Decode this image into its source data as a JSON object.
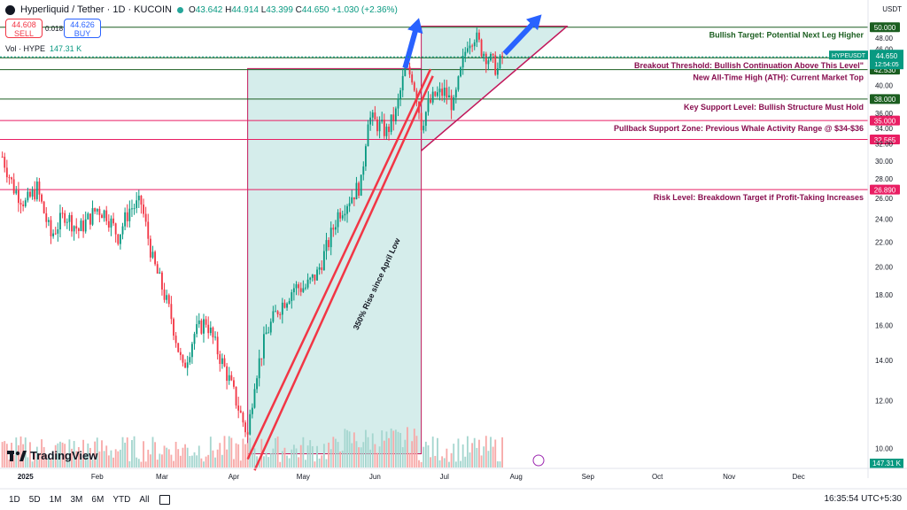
{
  "header": {
    "title": "Hyperliquid / Tether · 1D · KUCOIN",
    "o_label": "O",
    "o": "43.642",
    "h_label": "H",
    "h": "44.914",
    "l_label": "L",
    "l": "43.399",
    "c_label": "C",
    "c": "44.650",
    "change": "+1.030 (+2.36%)",
    "sell_price": "44.608",
    "sell_label": "SELL",
    "spread": "0.018",
    "buy_price": "44.626",
    "buy_label": "BUY",
    "vol_label": "Vol · HYPE",
    "vol_value": "147.31 K",
    "currency": "USDT"
  },
  "toolbar": {
    "timeframes": [
      "1D",
      "5D",
      "1M",
      "3M",
      "6M",
      "YTD",
      "All"
    ],
    "clock": "16:35:54 UTC+5:30"
  },
  "branding": {
    "name": "TradingView"
  },
  "colors": {
    "up": "#089981",
    "down": "#f23645",
    "zone": "#b2dfdb",
    "arrow": "#2962ff"
  },
  "chart_data": {
    "type": "candlestick",
    "symbol": "HYPEUSDT",
    "y_scale": "log",
    "ylim": [
      9.3,
      51.5
    ],
    "y_ticks": [
      10,
      12,
      14,
      16,
      18,
      20,
      22,
      24,
      26,
      28,
      30,
      32,
      34,
      36,
      38,
      40,
      42,
      44,
      46,
      48,
      50
    ],
    "x_ticks": [
      {
        "label": "2025",
        "date": "2025-01-01"
      },
      {
        "label": "Feb",
        "date": "2025-02-01"
      },
      {
        "label": "Mar",
        "date": "2025-03-01"
      },
      {
        "label": "Apr",
        "date": "2025-04-01"
      },
      {
        "label": "May",
        "date": "2025-05-01"
      },
      {
        "label": "Jun",
        "date": "2025-06-01"
      },
      {
        "label": "Jul",
        "date": "2025-07-01"
      },
      {
        "label": "Aug",
        "date": "2025-08-01"
      },
      {
        "label": "Sep",
        "date": "2025-09-01"
      },
      {
        "label": "Oct",
        "date": "2025-10-01"
      },
      {
        "label": "Nov",
        "date": "2025-11-01"
      },
      {
        "label": "Dec",
        "date": "2025-12-01"
      }
    ],
    "x_range": [
      "2024-12-21",
      "2025-12-31"
    ],
    "price_path": [
      [
        "2024-12-22",
        30.5
      ],
      [
        "2024-12-27",
        27.0
      ],
      [
        "2025-01-01",
        25.5
      ],
      [
        "2025-01-06",
        27.0
      ],
      [
        "2025-01-12",
        22.5
      ],
      [
        "2025-01-18",
        24.5
      ],
      [
        "2025-01-24",
        23.0
      ],
      [
        "2025-02-01",
        25.0
      ],
      [
        "2025-02-05",
        24.5
      ],
      [
        "2025-02-10",
        22.5
      ],
      [
        "2025-02-15",
        25.0
      ],
      [
        "2025-02-20",
        25.5
      ],
      [
        "2025-02-25",
        20.5
      ],
      [
        "2025-03-01",
        18.5
      ],
      [
        "2025-03-05",
        16.5
      ],
      [
        "2025-03-10",
        13.5
      ],
      [
        "2025-03-15",
        15.5
      ],
      [
        "2025-03-20",
        16.3
      ],
      [
        "2025-03-25",
        14.5
      ],
      [
        "2025-03-30",
        13.0
      ],
      [
        "2025-04-02",
        12.0
      ],
      [
        "2025-04-07",
        10.5
      ],
      [
        "2025-04-10",
        13.0
      ],
      [
        "2025-04-15",
        15.5
      ],
      [
        "2025-04-20",
        17.0
      ],
      [
        "2025-04-27",
        18.5
      ],
      [
        "2025-05-02",
        18.5
      ],
      [
        "2025-05-07",
        19.5
      ],
      [
        "2025-05-12",
        22.0
      ],
      [
        "2025-05-16",
        24.5
      ],
      [
        "2025-05-21",
        26.0
      ],
      [
        "2025-05-26",
        27.5
      ],
      [
        "2025-05-29",
        35.5
      ],
      [
        "2025-06-02",
        34.5
      ],
      [
        "2025-06-06",
        33.5
      ],
      [
        "2025-06-10",
        36.0
      ],
      [
        "2025-06-14",
        42.5
      ],
      [
        "2025-06-17",
        41.5
      ],
      [
        "2025-06-19",
        38.5
      ],
      [
        "2025-06-21",
        34.5
      ],
      [
        "2025-06-24",
        37.0
      ],
      [
        "2025-06-27",
        38.5
      ],
      [
        "2025-07-01",
        39.0
      ],
      [
        "2025-07-05",
        37.0
      ],
      [
        "2025-07-08",
        42.0
      ],
      [
        "2025-07-11",
        47.5
      ],
      [
        "2025-07-14",
        48.5
      ],
      [
        "2025-07-17",
        46.0
      ],
      [
        "2025-07-20",
        44.5
      ],
      [
        "2025-07-24",
        42.5
      ],
      [
        "2025-07-26",
        44.65
      ]
    ],
    "volume_scale": "approx",
    "last_volume": "147.31 K",
    "horizontal_levels": [
      {
        "price": 50.0,
        "label": "50.000",
        "color": "#1b5e20",
        "annotation": "Bullish Target: Potential Next Leg Higher",
        "annotation_color": "#1b5e20"
      },
      {
        "price": 44.5,
        "label": "44.500",
        "color": "#1b5e20",
        "annotation": "Breakout Threshold: Bullish Continuation Above This Level\"",
        "annotation_color": "#880e4f"
      },
      {
        "price": 42.53,
        "label": "42.530",
        "color": "#1b5e20",
        "annotation": "New All-Time High (ATH): Current Market Top",
        "annotation_color": "#880e4f"
      },
      {
        "price": 38.0,
        "label": "38.000",
        "color": "#1b5e20",
        "annotation": "Key Support Level: Bullish Structure Must Hold",
        "annotation_color": "#880e4f"
      },
      {
        "price": 35.0,
        "label": "35.000",
        "color": "#e91e63",
        "annotation": "Pullback Support Zone: Previous Whale Activity Range @ $34-$36",
        "annotation_color": "#880e4f"
      },
      {
        "price": 32.565,
        "label": "32.565",
        "color": "#e91e63",
        "annotation": "",
        "annotation_color": "#880e4f"
      },
      {
        "price": 26.89,
        "label": "26.890",
        "color": "#e91e63",
        "annotation": "Risk Level: Breakdown Target if Profit-Taking Increases",
        "annotation_color": "#880e4f"
      }
    ],
    "last_price": {
      "price": 44.65,
      "symbol": "HYPEUSDT",
      "value": "44.650",
      "countdown": "12:54:05"
    },
    "volume_badge": "147.31 K",
    "trend_label": "350% Rise since April Low",
    "zones": [
      {
        "kind": "rect",
        "x0": "2025-04-07",
        "x1": "2025-06-21",
        "y0": 9.8,
        "y1": 42.7
      },
      {
        "kind": "poly",
        "points": [
          [
            "2025-06-21",
            31.2
          ],
          [
            "2025-06-21",
            50.2
          ],
          [
            "2025-08-23",
            50.2
          ]
        ]
      }
    ],
    "lines": [
      {
        "from": [
          "2025-04-07",
          9.6
        ],
        "to": [
          "2025-06-25",
          42.6
        ],
        "color": "#f23645"
      },
      {
        "from": [
          "2025-04-10",
          9.2
        ],
        "to": [
          "2025-06-26",
          41.5
        ],
        "color": "#f23645"
      },
      {
        "from": [
          "2025-06-21",
          31.2
        ],
        "to": [
          "2025-08-23",
          50.2
        ],
        "color": "#c2185b"
      }
    ],
    "arrows": [
      {
        "from": [
          "2025-06-14",
          42.8
        ],
        "to": [
          "2025-06-20",
          51.8
        ]
      },
      {
        "from": [
          "2025-07-27",
          45.2
        ],
        "to": [
          "2025-08-12",
          52.5
        ]
      }
    ]
  }
}
